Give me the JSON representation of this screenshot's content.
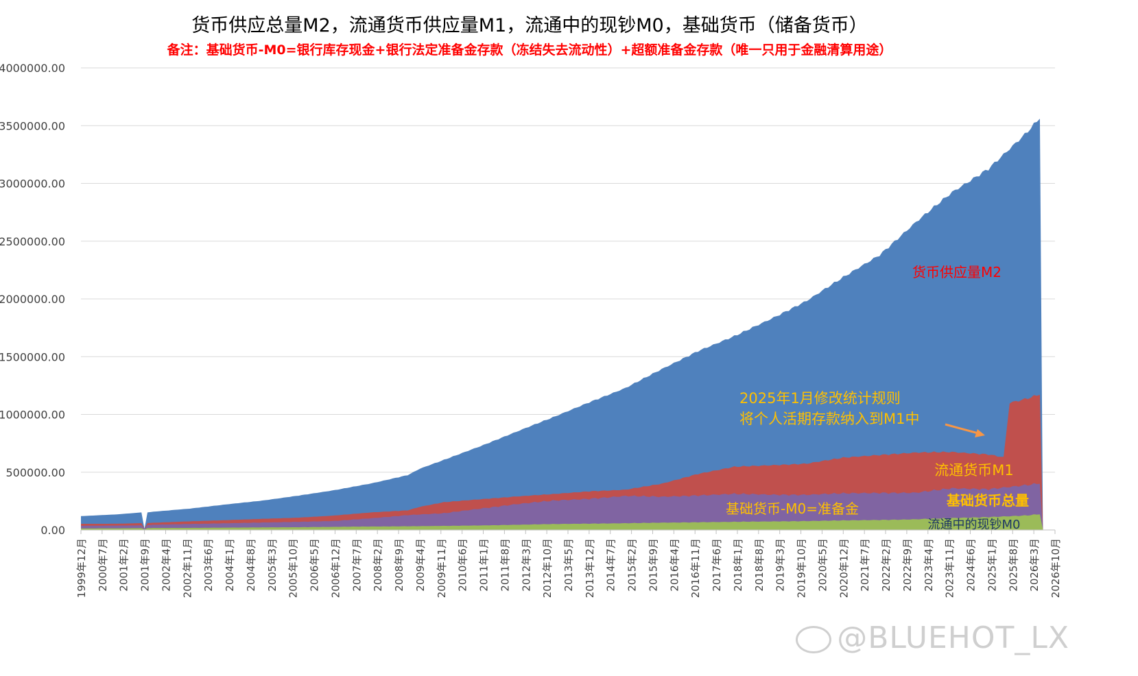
{
  "chart_data": {
    "type": "area",
    "title": "货币供应总量M2，流通货币供应量M1，流通中的现钞M0，基础货币（储备货币）",
    "subtitle": "备注：基础货币-M0=银行库存现金+银行法定准备金存款（冻结失去流动性）+超额准备金存款（唯一只用于金融清算用途）",
    "ylim": [
      0,
      4000000
    ],
    "y_ticks": [
      "0.00",
      "500000.00",
      "1000000.00",
      "1500000.00",
      "2000000.00",
      "2500000.00",
      "3000000.00",
      "3500000.00",
      "4000000.00"
    ],
    "x_tick_labels": [
      "1999年12月",
      "2000年7月",
      "2001年2月",
      "2001年9月",
      "2002年4月",
      "2002年11月",
      "2003年6月",
      "2004年1月",
      "2004年8月",
      "2005年3月",
      "2005年10月",
      "2006年5月",
      "2006年12月",
      "2007年7月",
      "2008年2月",
      "2008年9月",
      "2009年4月",
      "2009年11月",
      "2010年6月",
      "2011年1月",
      "2011年8月",
      "2012年3月",
      "2012年10月",
      "2013年5月",
      "2013年12月",
      "2014年7月",
      "2015年2月",
      "2015年9月",
      "2016年4月",
      "2016年11月",
      "2017年6月",
      "2018年1月",
      "2018年8月",
      "2019年3月",
      "2019年10月",
      "2020年5月",
      "2020年12月",
      "2021年7月",
      "2022年2月",
      "2022年9月",
      "2023年4月",
      "2023年11月",
      "2024年6月",
      "2025年1月",
      "2025年8月",
      "2026年3月",
      "2026年10月"
    ],
    "x_tick_step_months": 7,
    "grid": "horizontal",
    "colors": {
      "M2": "#4f81bd",
      "M1": "#c0504d",
      "base": "#8064a2",
      "M0": "#9bbb59",
      "title": "#000000",
      "subtitle": "#ff0000",
      "label_m2": "#ff0000",
      "label_yellow": "#ffc000",
      "label_m0": "#1f3864",
      "arrow": "#f79646",
      "gridline": "#d9d9d9"
    },
    "series": [
      {
        "name": "货币供应量M2",
        "anchors": [
          [
            0,
            119900
          ],
          [
            12,
            135000
          ],
          [
            20,
            152000
          ],
          [
            21,
            10000
          ],
          [
            22,
            152000
          ],
          [
            24,
            158000
          ],
          [
            36,
            185000
          ],
          [
            48,
            221000
          ],
          [
            60,
            254000
          ],
          [
            72,
            298000
          ],
          [
            84,
            345000
          ],
          [
            96,
            403000
          ],
          [
            108,
            475000
          ],
          [
            112,
            530000
          ],
          [
            120,
            606000
          ],
          [
            132,
            725000
          ],
          [
            144,
            851000
          ],
          [
            156,
            974000
          ],
          [
            168,
            1106000
          ],
          [
            180,
            1228000
          ],
          [
            192,
            1392000
          ],
          [
            204,
            1550000
          ],
          [
            216,
            1676000
          ],
          [
            228,
            1826000
          ],
          [
            240,
            1986000
          ],
          [
            252,
            2186000
          ],
          [
            264,
            2382000
          ],
          [
            276,
            2664000
          ],
          [
            288,
            2922000
          ],
          [
            300,
            3130000
          ],
          [
            312,
            3420000
          ],
          [
            317,
            3560000
          ],
          [
            318,
            10000
          ]
        ]
      },
      {
        "name": "流通货币M1",
        "anchors": [
          [
            0,
            53100
          ],
          [
            12,
            54000
          ],
          [
            20,
            59000
          ],
          [
            21,
            10000
          ],
          [
            22,
            60000
          ],
          [
            24,
            62000
          ],
          [
            36,
            75000
          ],
          [
            48,
            85000
          ],
          [
            60,
            96000
          ],
          [
            72,
            107000
          ],
          [
            84,
            125000
          ],
          [
            96,
            152000
          ],
          [
            108,
            170000
          ],
          [
            112,
            200000
          ],
          [
            120,
            240000
          ],
          [
            132,
            266000
          ],
          [
            144,
            290000
          ],
          [
            156,
            310000
          ],
          [
            168,
            335000
          ],
          [
            180,
            348000
          ],
          [
            192,
            400000
          ],
          [
            204,
            486000
          ],
          [
            216,
            546000
          ],
          [
            228,
            560000
          ],
          [
            240,
            575000
          ],
          [
            252,
            625000
          ],
          [
            264,
            650000
          ],
          [
            276,
            670000
          ],
          [
            288,
            674000
          ],
          [
            300,
            655000
          ],
          [
            305,
            630000
          ],
          [
            307,
            1100000
          ],
          [
            312,
            1130000
          ],
          [
            317,
            1170000
          ],
          [
            318,
            10000
          ]
        ]
      },
      {
        "name": "基础货币总量",
        "anchors": [
          [
            0,
            36500
          ],
          [
            12,
            38000
          ],
          [
            20,
            40000
          ],
          [
            21,
            10000
          ],
          [
            22,
            42000
          ],
          [
            24,
            45000
          ],
          [
            36,
            52000
          ],
          [
            48,
            58000
          ],
          [
            60,
            64000
          ],
          [
            72,
            71000
          ],
          [
            84,
            78000
          ],
          [
            96,
            101000
          ],
          [
            108,
            129000
          ],
          [
            120,
            144000
          ],
          [
            132,
            185000
          ],
          [
            144,
            224000
          ],
          [
            156,
            253000
          ],
          [
            168,
            271000
          ],
          [
            180,
            294000
          ],
          [
            192,
            287000
          ],
          [
            204,
            300000
          ],
          [
            216,
            311000
          ],
          [
            228,
            306000
          ],
          [
            240,
            305000
          ],
          [
            252,
            316000
          ],
          [
            264,
            322000
          ],
          [
            276,
            322000
          ],
          [
            288,
            360000
          ],
          [
            300,
            355000
          ],
          [
            312,
            385000
          ],
          [
            317,
            400000
          ],
          [
            318,
            10000
          ]
        ]
      },
      {
        "name": "流通中的现钞M0",
        "anchors": [
          [
            0,
            13500
          ],
          [
            12,
            14000
          ],
          [
            20,
            16000
          ],
          [
            21,
            5000
          ],
          [
            22,
            16000
          ],
          [
            24,
            17000
          ],
          [
            36,
            18000
          ],
          [
            48,
            20000
          ],
          [
            60,
            22000
          ],
          [
            72,
            24000
          ],
          [
            84,
            27000
          ],
          [
            96,
            30000
          ],
          [
            108,
            32000
          ],
          [
            120,
            35000
          ],
          [
            132,
            39000
          ],
          [
            144,
            45000
          ],
          [
            156,
            51000
          ],
          [
            168,
            55000
          ],
          [
            180,
            58000
          ],
          [
            192,
            63000
          ],
          [
            204,
            67000
          ],
          [
            216,
            70000
          ],
          [
            228,
            74000
          ],
          [
            240,
            77000
          ],
          [
            252,
            82000
          ],
          [
            264,
            87000
          ],
          [
            276,
            92000
          ],
          [
            288,
            103000
          ],
          [
            300,
            112000
          ],
          [
            312,
            124000
          ],
          [
            317,
            135000
          ],
          [
            318,
            5000
          ]
        ]
      }
    ],
    "annotations": [
      {
        "text": "货币供应量M2",
        "color_key": "label_m2"
      },
      {
        "text": "2025年1月修改统计规则",
        "color_key": "label_yellow"
      },
      {
        "text": "将个人活期存款纳入到M1中",
        "color_key": "label_yellow"
      },
      {
        "text": "流通货币M1",
        "color_key": "label_yellow"
      },
      {
        "text": "基础货币总量",
        "color_key": "label_yellow"
      },
      {
        "text": "基础货币-M0=准备金",
        "color_key": "label_yellow"
      },
      {
        "text": "流通中的现钞M0",
        "color_key": "label_m0"
      }
    ]
  },
  "watermark": "@BLUEHOT_LX"
}
